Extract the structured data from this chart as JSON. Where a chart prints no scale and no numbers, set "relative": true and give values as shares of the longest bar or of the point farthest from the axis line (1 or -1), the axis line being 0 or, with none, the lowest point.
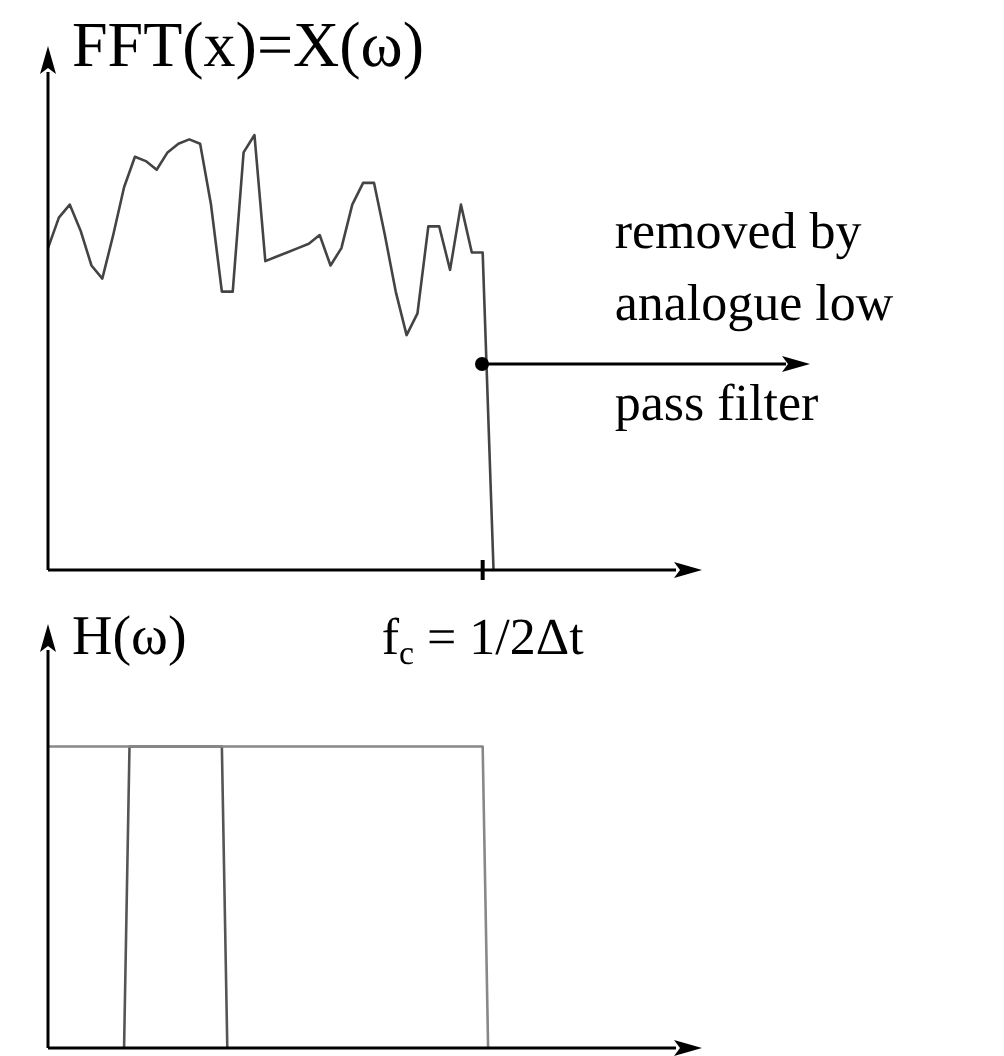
{
  "chart_data": [
    {
      "type": "line",
      "ylabel": "FFT(x)=X(ω)",
      "relative": true,
      "categories": [
        null,
        null,
        null,
        null,
        null,
        null,
        null,
        null,
        null,
        null,
        null,
        null,
        null,
        null,
        null,
        null,
        null,
        null,
        null,
        null,
        null,
        null,
        null,
        null,
        null,
        null,
        null,
        null,
        null,
        null,
        null,
        null,
        null,
        null,
        null,
        null,
        null,
        null,
        null,
        null,
        null,
        null,
        null,
        null,
        null,
        null,
        null,
        null,
        null,
        null,
        null,
        null,
        null,
        null,
        null,
        null,
        null,
        null,
        null,
        null,
        null
      ],
      "series": [
        {
          "color": "#444444",
          "values": [
            0.74,
            0.81,
            0.84,
            0.78,
            0.7,
            0.67,
            0.77,
            0.88,
            0.95,
            0.94,
            0.92,
            0.96,
            0.98,
            0.99,
            0.98,
            0.84,
            0.64,
            0.64,
            0.96,
            1,
            0.71,
            0.72,
            0.73,
            0.74,
            0.75,
            0.77,
            0.7,
            0.74,
            0.84,
            0.89,
            0.89,
            0.77,
            0.64,
            0.54,
            0.59,
            0.79,
            0.79,
            0.69,
            0.84,
            0.73,
            0.73,
            0,
            null,
            null,
            null,
            null,
            null,
            null,
            null,
            null,
            null,
            null,
            null,
            null,
            null,
            null,
            null,
            null,
            null,
            null,
            null
          ]
        }
      ],
      "annotations": [
        "f$_{c}$ = 1/2Δt",
        "removed by analogue low pass filter"
      ]
    },
    {
      "type": "line",
      "ylabel": "H(ω)",
      "relative": true,
      "categories": [
        null,
        null,
        null,
        null,
        null,
        null,
        null,
        null,
        null,
        null,
        null,
        null,
        null,
        null,
        null,
        null,
        null,
        null,
        null,
        null,
        null,
        null,
        null,
        null,
        null,
        null,
        null,
        null,
        null,
        null,
        null,
        null,
        null,
        null,
        null,
        null,
        null,
        null,
        null,
        null,
        null,
        null,
        null,
        null,
        null,
        null,
        null,
        null,
        null,
        null,
        null,
        null,
        null,
        null,
        null,
        null,
        null,
        null,
        null,
        null,
        null,
        null,
        null,
        null,
        null,
        null,
        null,
        null,
        null,
        null,
        null,
        null,
        null,
        null,
        null,
        null,
        null,
        null,
        null,
        null,
        null,
        null,
        null,
        null,
        null,
        null,
        null,
        null,
        null,
        null,
        null,
        null,
        null,
        null,
        null,
        null,
        null,
        null,
        null,
        null,
        null,
        null,
        null,
        null,
        null,
        null,
        null,
        null,
        null,
        null,
        null,
        null,
        null,
        null,
        null,
        null,
        null,
        null,
        null,
        null,
        null
      ],
      "series": [
        {
          "color": "#888888",
          "values": [
            1,
            1,
            1,
            1,
            1,
            1,
            1,
            1,
            1,
            1,
            1,
            1,
            1,
            1,
            1,
            1,
            1,
            1,
            1,
            1,
            1,
            1,
            1,
            1,
            1,
            1,
            1,
            1,
            1,
            1,
            1,
            1,
            1,
            1,
            1,
            1,
            1,
            1,
            1,
            1,
            1,
            1,
            1,
            1,
            1,
            1,
            1,
            1,
            1,
            1,
            1,
            1,
            1,
            1,
            1,
            1,
            1,
            1,
            1,
            1,
            1,
            1,
            1,
            1,
            1,
            1,
            1,
            1,
            1,
            1,
            1,
            1,
            1,
            1,
            1,
            1,
            1,
            1,
            1,
            1,
            1,
            0,
            null,
            null,
            null,
            null,
            null,
            null,
            null,
            null,
            null,
            null,
            null,
            null,
            null,
            null,
            null,
            null,
            null,
            null,
            null,
            null,
            null,
            null,
            null,
            null,
            null,
            null,
            null,
            null,
            null,
            null,
            null,
            null,
            null,
            null,
            null,
            null,
            null,
            null,
            null
          ]
        },
        {
          "color": "#555555",
          "values": [
            null,
            null,
            null,
            null,
            null,
            null,
            null,
            null,
            null,
            null,
            null,
            null,
            null,
            null,
            0,
            1,
            1,
            1,
            1,
            1,
            1,
            1,
            1,
            1,
            1,
            1,
            1,
            1,
            1,
            1,
            1,
            1,
            1,
            0,
            null,
            null,
            null,
            null,
            null,
            null,
            null,
            null,
            null,
            null,
            null,
            null,
            null,
            null,
            null,
            null,
            null,
            null,
            null,
            null,
            null,
            null,
            null,
            null,
            null,
            null,
            null,
            null,
            null,
            null,
            null,
            null,
            null,
            null,
            null,
            null,
            null,
            null,
            null,
            null,
            null,
            null,
            null,
            null,
            null,
            null,
            null,
            null,
            null,
            null,
            null,
            null,
            null,
            null,
            null,
            null,
            null,
            null,
            null,
            null,
            null,
            null,
            null,
            null,
            null,
            null,
            null,
            null,
            null,
            null,
            null,
            null,
            null,
            null,
            null,
            null,
            null,
            null,
            null,
            null,
            null,
            null,
            null,
            null,
            null,
            null,
            null
          ]
        }
      ]
    }
  ]
}
